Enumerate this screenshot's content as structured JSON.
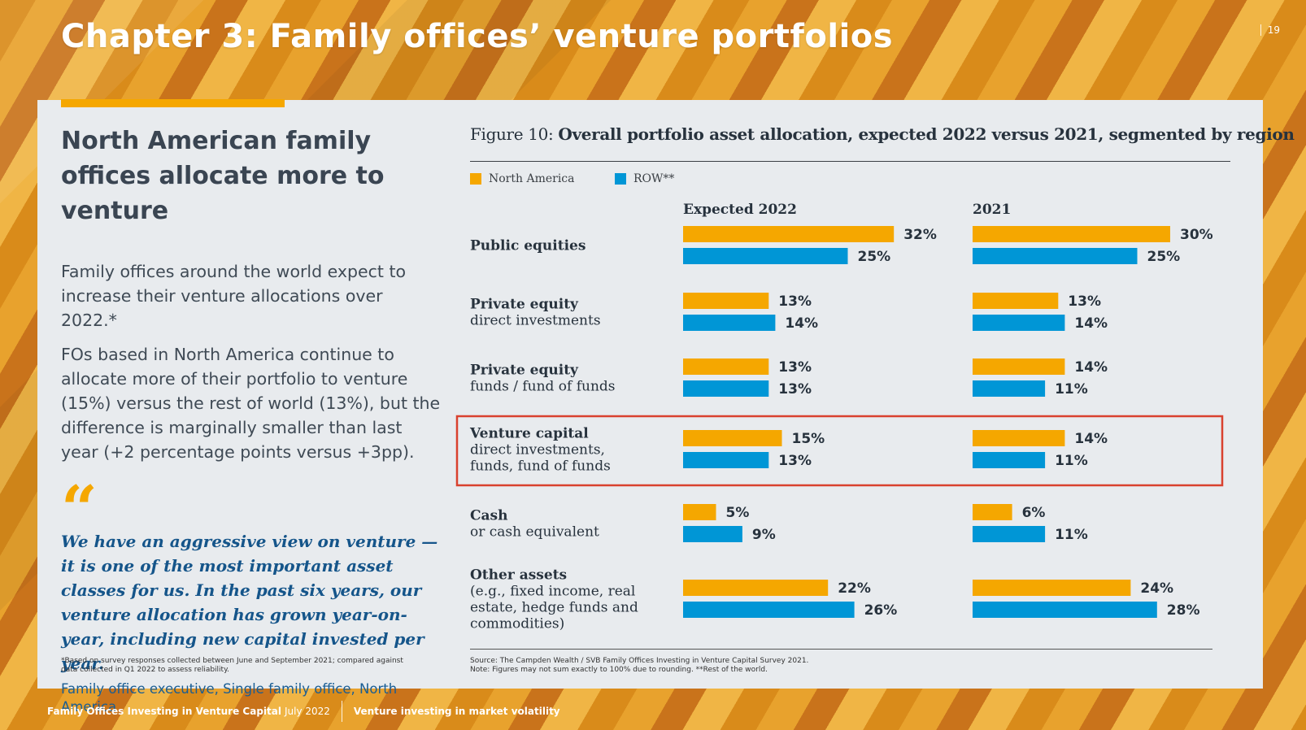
{
  "page": {
    "title": "Chapter 3: Family offices’ venture portfolios",
    "page_number": "19"
  },
  "left": {
    "headline": "North American family offices allocate more to venture",
    "para1": "Family offices around the world expect to increase their venture allocations over 2022.*",
    "para2": "FOs based in North America continue to allocate more of their portfolio to venture (15%) versus the rest of world (13%), but the difference is marginally smaller than last year (+2 percentage points versus +3pp).",
    "quote_mark": "“",
    "quote": "We have an aggressive view on venture — it is one of the most important asset classes for us. In the past six years, our venture allocation has grown year-on-year, including new capital invested per year.",
    "quote_attribution": "Family office executive, Single family office, North America",
    "footnote": "*Based on survey responses collected between June and September 2021; compared against data collected in Q1 2022 to assess reliability."
  },
  "figure": {
    "label": "Figure 10:",
    "title": "Overall portfolio asset allocation, expected 2022 versus 2021, segmented by region",
    "source": "Source: The Campden Wealth / SVB Family Offices Investing in Venture Capital Survey 2021.",
    "note": "Note: Figures may not sum exactly to 100% due to rounding. **Rest of the world."
  },
  "colors": {
    "north_america": "#f5a700",
    "row": "#0096d6",
    "highlight_border": "#d9412e"
  },
  "chart_data": {
    "type": "bar",
    "orientation": "horizontal",
    "panels": [
      "Expected 2022",
      "2021"
    ],
    "legend_placement": "top-left",
    "grid": false,
    "categories": [
      {
        "title": "Public equities",
        "subtitle": ""
      },
      {
        "title": "Private equity",
        "subtitle": "direct investments"
      },
      {
        "title": "Private equity",
        "subtitle": "funds / fund of funds"
      },
      {
        "title": "Venture capital",
        "subtitle": "direct investments, funds, fund of funds"
      },
      {
        "title": "Cash",
        "subtitle": "or cash equivalent"
      },
      {
        "title": "Other assets",
        "subtitle": "(e.g., fixed income, real estate, hedge funds and commodities)"
      }
    ],
    "category_label_lines": [
      [
        "Public equities"
      ],
      [
        "Private equity",
        "direct investments"
      ],
      [
        "Private equity",
        "funds / fund of funds"
      ],
      [
        "Venture capital",
        "direct investments,",
        "funds, fund of funds"
      ],
      [
        "Cash",
        "or cash equivalent"
      ],
      [
        "Other assets",
        "(e.g., fixed income, real",
        "estate, hedge funds and",
        "commodities)"
      ]
    ],
    "series": [
      {
        "name": "North America",
        "expected_2022": [
          32,
          13,
          13,
          15,
          5,
          22
        ],
        "y2021": [
          30,
          13,
          14,
          14,
          6,
          24
        ]
      },
      {
        "name": "ROW**",
        "expected_2022": [
          25,
          14,
          13,
          13,
          9,
          26
        ],
        "y2021": [
          25,
          14,
          11,
          11,
          11,
          28
        ]
      }
    ],
    "unit": "%",
    "highlighted_category": "Venture capital"
  },
  "footer": {
    "publication": "Family Offices Investing in Venture Capital",
    "date": "July 2022",
    "section": "Venture investing in market volatility"
  }
}
